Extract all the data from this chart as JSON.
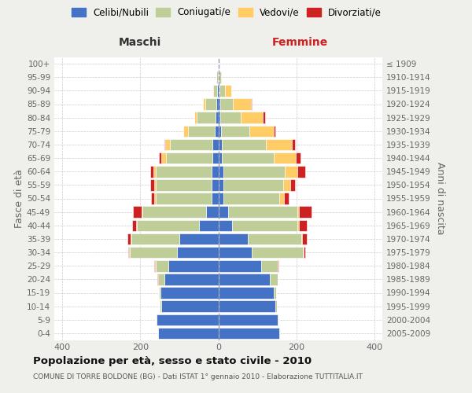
{
  "age_groups": [
    "0-4",
    "5-9",
    "10-14",
    "15-19",
    "20-24",
    "25-29",
    "30-34",
    "35-39",
    "40-44",
    "45-49",
    "50-54",
    "55-59",
    "60-64",
    "65-69",
    "70-74",
    "75-79",
    "80-84",
    "85-89",
    "90-94",
    "95-99",
    "100+"
  ],
  "birth_years": [
    "2005-2009",
    "2000-2004",
    "1995-1999",
    "1990-1994",
    "1985-1989",
    "1980-1984",
    "1975-1979",
    "1970-1974",
    "1965-1969",
    "1960-1964",
    "1955-1959",
    "1950-1954",
    "1945-1949",
    "1940-1944",
    "1935-1939",
    "1930-1934",
    "1925-1929",
    "1920-1924",
    "1915-1919",
    "1910-1914",
    "≤ 1909"
  ],
  "maschi": {
    "celibi": [
      155,
      158,
      147,
      148,
      138,
      128,
      105,
      100,
      50,
      32,
      18,
      18,
      18,
      16,
      15,
      10,
      7,
      6,
      4,
      2,
      1
    ],
    "coniugati": [
      1,
      2,
      3,
      5,
      16,
      32,
      122,
      122,
      158,
      162,
      143,
      143,
      143,
      118,
      108,
      68,
      48,
      28,
      10,
      3,
      1
    ],
    "vedovi": [
      0,
      0,
      0,
      0,
      1,
      2,
      2,
      2,
      3,
      3,
      3,
      3,
      5,
      12,
      12,
      12,
      6,
      6,
      2,
      0,
      0
    ],
    "divorziati": [
      0,
      0,
      0,
      0,
      1,
      2,
      2,
      9,
      9,
      22,
      9,
      11,
      9,
      6,
      2,
      0,
      0,
      0,
      0,
      0,
      0
    ]
  },
  "femmine": {
    "nubili": [
      157,
      152,
      147,
      142,
      132,
      110,
      85,
      75,
      35,
      25,
      14,
      14,
      14,
      10,
      10,
      8,
      5,
      5,
      3,
      2,
      1
    ],
    "coniugate": [
      1,
      2,
      3,
      6,
      20,
      42,
      132,
      137,
      167,
      177,
      142,
      152,
      157,
      132,
      112,
      72,
      52,
      32,
      15,
      5,
      1
    ],
    "vedove": [
      0,
      0,
      0,
      0,
      0,
      1,
      2,
      3,
      5,
      5,
      13,
      19,
      32,
      57,
      67,
      62,
      57,
      47,
      16,
      3,
      0
    ],
    "divorziate": [
      0,
      0,
      0,
      0,
      1,
      2,
      3,
      11,
      19,
      32,
      12,
      12,
      19,
      12,
      8,
      5,
      5,
      2,
      0,
      0,
      0
    ]
  },
  "colors": {
    "celibi": "#4472C4",
    "coniugati": "#BFCE99",
    "vedovi": "#FFCC66",
    "divorziati": "#CC2222"
  },
  "title": "Popolazione per età, sesso e stato civile - 2010",
  "subtitle": "COMUNE DI TORRE BOLDONE (BG) - Dati ISTAT 1° gennaio 2010 - Elaborazione TUTTITALIA.IT",
  "xlabel_maschi": "Maschi",
  "xlabel_femmine": "Femmine",
  "ylabel_left": "Fasce di età",
  "ylabel_right": "Anni di nascita",
  "xlim": 420,
  "background_color": "#efefeb",
  "plot_background": "#ffffff"
}
